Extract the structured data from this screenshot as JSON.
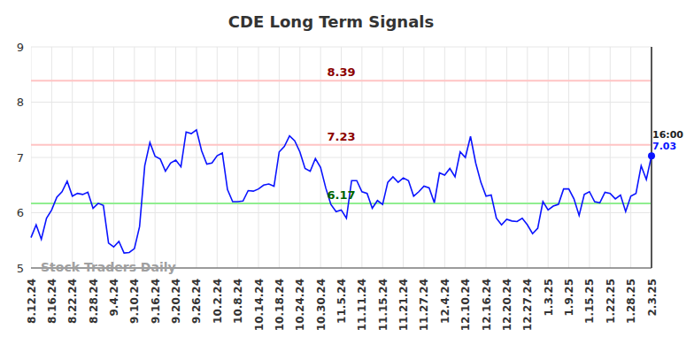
{
  "chart_data": {
    "type": "line",
    "title": "CDE Long Term Signals",
    "color": "#0a14ff",
    "grid": true,
    "categories": [
      "8.12.24",
      null,
      null,
      null,
      "8.16.24",
      null,
      null,
      null,
      "8.22.24",
      null,
      null,
      null,
      "8.28.24",
      null,
      null,
      null,
      "9.4.24",
      null,
      null,
      null,
      "9.10.24",
      null,
      null,
      null,
      "9.16.24",
      null,
      null,
      null,
      "9.20.24",
      null,
      null,
      null,
      "9.26.24",
      null,
      null,
      null,
      "10.2.24",
      null,
      null,
      null,
      "10.8.24",
      null,
      null,
      null,
      "10.14.24",
      null,
      null,
      null,
      "10.18.24",
      null,
      null,
      null,
      "10.24.24",
      null,
      null,
      null,
      "10.30.24",
      null,
      null,
      null,
      "11.5.24",
      null,
      null,
      null,
      "11.11.24",
      null,
      null,
      null,
      "11.15.24",
      null,
      null,
      null,
      "11.21.24",
      null,
      null,
      null,
      "11.27.24",
      null,
      null,
      null,
      "12.4.24",
      null,
      null,
      null,
      "12.10.24",
      null,
      null,
      null,
      "12.16.24",
      null,
      null,
      null,
      "12.20.24",
      null,
      null,
      null,
      "12.27.24",
      null,
      null,
      null,
      "1.3.25",
      null,
      null,
      null,
      "1.9.25",
      null,
      null,
      null,
      "1.15.25",
      null,
      null,
      null,
      "1.22.25",
      null,
      null,
      null,
      "1.28.25",
      null,
      null,
      null,
      "2.3.25"
    ],
    "values": [
      5.55,
      5.78,
      5.52,
      5.9,
      6.05,
      6.28,
      6.38,
      6.57,
      6.3,
      6.35,
      6.33,
      6.37,
      6.08,
      6.17,
      6.13,
      5.45,
      5.38,
      5.48,
      5.27,
      5.28,
      5.35,
      5.75,
      6.85,
      7.27,
      7.02,
      6.97,
      6.75,
      6.9,
      6.95,
      6.83,
      7.46,
      7.43,
      7.5,
      7.12,
      6.88,
      6.9,
      7.03,
      7.08,
      6.42,
      6.2,
      6.2,
      6.21,
      6.4,
      6.39,
      6.43,
      6.5,
      6.52,
      6.48,
      7.1,
      7.2,
      7.39,
      7.3,
      7.1,
      6.8,
      6.75,
      6.98,
      6.82,
      6.45,
      6.15,
      6.02,
      6.05,
      5.9,
      6.58,
      6.58,
      6.38,
      6.35,
      6.08,
      6.22,
      6.15,
      6.55,
      6.65,
      6.55,
      6.63,
      6.58,
      6.3,
      6.38,
      6.48,
      6.45,
      6.18,
      6.72,
      6.68,
      6.8,
      6.65,
      7.1,
      7.0,
      7.38,
      6.9,
      6.55,
      6.3,
      6.32,
      5.9,
      5.78,
      5.88,
      5.85,
      5.84,
      5.9,
      5.78,
      5.62,
      5.72,
      6.2,
      6.05,
      6.12,
      6.15,
      6.43,
      6.43,
      6.25,
      5.95,
      6.33,
      6.38,
      6.2,
      6.18,
      6.37,
      6.35,
      6.25,
      6.32,
      6.02,
      6.3,
      6.35,
      6.85,
      6.6,
      7.03
    ],
    "ylim": [
      5,
      9
    ],
    "yticks": [
      5,
      6,
      7,
      8,
      9
    ],
    "reference_lines": [
      {
        "value": 8.39,
        "color": "#ffc4c4",
        "label_color": "#8b0000"
      },
      {
        "value": 7.23,
        "color": "#ffc4c4",
        "label_color": "#8b0000"
      },
      {
        "value": 6.17,
        "color": "#90ee90",
        "label_color": "#006400"
      }
    ],
    "last_label": "16:00",
    "watermark": "Stock Traders Daily"
  }
}
